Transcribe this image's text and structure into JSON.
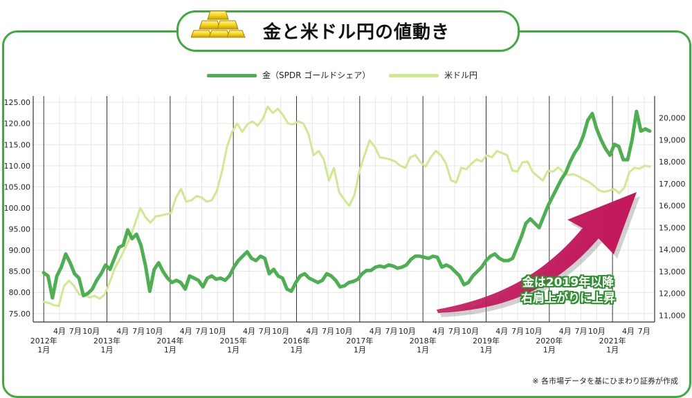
{
  "title": "金と米ドル円の値動き",
  "note": "※ 各市場データを基にひまわり証券が作成",
  "callout": [
    "金は2019年以降",
    "右肩上がりに上昇"
  ],
  "colors": {
    "frame": "#3dab3d",
    "gold": "#4caf50",
    "usdjpy": "#cfe98f",
    "arrow": "#c2185b"
  },
  "chart_data": {
    "type": "line",
    "legend_position": "top-center",
    "grid": true,
    "x_start": "2011-11",
    "x_end": "2021-09",
    "year_ticks": [
      "2012年\n1月",
      "2013年\n1月",
      "2014年\n1月",
      "2015年\n1月",
      "2016年\n1月",
      "2017年\n1月",
      "2018年\n1月",
      "2019年\n1月",
      "2020年\n1月",
      "2021年\n1月"
    ],
    "month_ticks": [
      "4月",
      "7月",
      "10月"
    ],
    "left_axis": {
      "ticks": [
        "125.00",
        "120.00",
        "115.00",
        "110.00",
        "105.00",
        "100.00",
        "95.00",
        "90.00",
        "85.00",
        "80.00",
        "75.00"
      ],
      "ylim": [
        73,
        126.5
      ]
    },
    "right_axis": {
      "ticks": [
        "20,000",
        "19,000",
        "18,000",
        "17,000",
        "16,000",
        "15,000",
        "14,000",
        "13,000",
        "12,000",
        "11,000"
      ],
      "ylim": [
        10700,
        21000
      ]
    },
    "series": [
      {
        "name": "金（SPDR ゴールドシェア）",
        "axis": "right",
        "color": "#4caf50",
        "values": [
          12950,
          12800,
          11800,
          12800,
          13200,
          13800,
          13400,
          12900,
          12700,
          11900,
          12000,
          12200,
          12600,
          12900,
          13300,
          13100,
          13600,
          14100,
          14200,
          14900,
          14500,
          14700,
          14200,
          13300,
          12100,
          13100,
          13400,
          13000,
          12700,
          12500,
          12600,
          12500,
          12200,
          12800,
          12700,
          12600,
          12300,
          12700,
          12800,
          12650,
          12700,
          12600,
          12800,
          13200,
          13500,
          13700,
          13900,
          13600,
          13500,
          13700,
          13600,
          12900,
          13100,
          12800,
          12700,
          12200,
          12100,
          12500,
          12800,
          12900,
          12700,
          12600,
          12500,
          12600,
          12900,
          12800,
          12600,
          12300,
          12350,
          12500,
          12550,
          12650,
          12900,
          13050,
          13050,
          13200,
          13250,
          13200,
          13300,
          13250,
          13150,
          13200,
          13300,
          13550,
          13700,
          13700,
          13650,
          13600,
          13700,
          13650,
          13200,
          13300,
          13200,
          13000,
          12800,
          12400,
          12500,
          12800,
          13000,
          13200,
          13500,
          13700,
          13800,
          13600,
          13500,
          13500,
          13600,
          14100,
          14600,
          15200,
          15400,
          15200,
          15000,
          15500,
          16000,
          16400,
          16800,
          17200,
          17500,
          18000,
          18400,
          18700,
          19200,
          19900,
          20200,
          19500,
          19000,
          18600,
          18300,
          18800,
          18700,
          18100,
          18100,
          19000,
          20300,
          19400,
          19500,
          19400
        ]
      },
      {
        "name": "米ドル円",
        "axis": "left",
        "color": "#cfe98f",
        "values": [
          77.8,
          77.5,
          77.0,
          76.8,
          81.5,
          82.8,
          81.5,
          79.5,
          79.5,
          78.8,
          79.2,
          78.5,
          79.5,
          82.5,
          85.8,
          88.0,
          90.5,
          93.0,
          96.5,
          100.0,
          97.8,
          96.5,
          98.0,
          98.2,
          98.5,
          98.8,
          102.5,
          104.5,
          101.5,
          101.8,
          102.8,
          102.5,
          101.5,
          101.8,
          104.0,
          108.5,
          114.5,
          118.0,
          120.0,
          118.0,
          119.8,
          120.5,
          119.5,
          121.0,
          124.0,
          122.5,
          123.5,
          122.0,
          120.0,
          119.8,
          120.5,
          120.0,
          117.5,
          112.5,
          113.5,
          111.5,
          106.5,
          109.5,
          103.8,
          102.0,
          100.5,
          103.0,
          108.8,
          112.5,
          116.0,
          114.5,
          112.0,
          111.8,
          111.5,
          111.0,
          110.0,
          109.5,
          112.0,
          112.5,
          110.8,
          109.8,
          112.0,
          113.5,
          112.5,
          110.5,
          106.5,
          106.0,
          109.5,
          109.2,
          110.5,
          111.5,
          111.0,
          112.5,
          112.0,
          113.5,
          113.0,
          112.5,
          108.9,
          108.6,
          110.8,
          111.0,
          108.5,
          107.5,
          106.5,
          108.8,
          108.6,
          109.6,
          108.5,
          107.8,
          108.0,
          107.5,
          106.8,
          106.2,
          105.3,
          104.2,
          103.8,
          104.1,
          104.5,
          103.5,
          104.8,
          108.5,
          109.5,
          109.3,
          110.0,
          109.8
        ]
      }
    ]
  }
}
